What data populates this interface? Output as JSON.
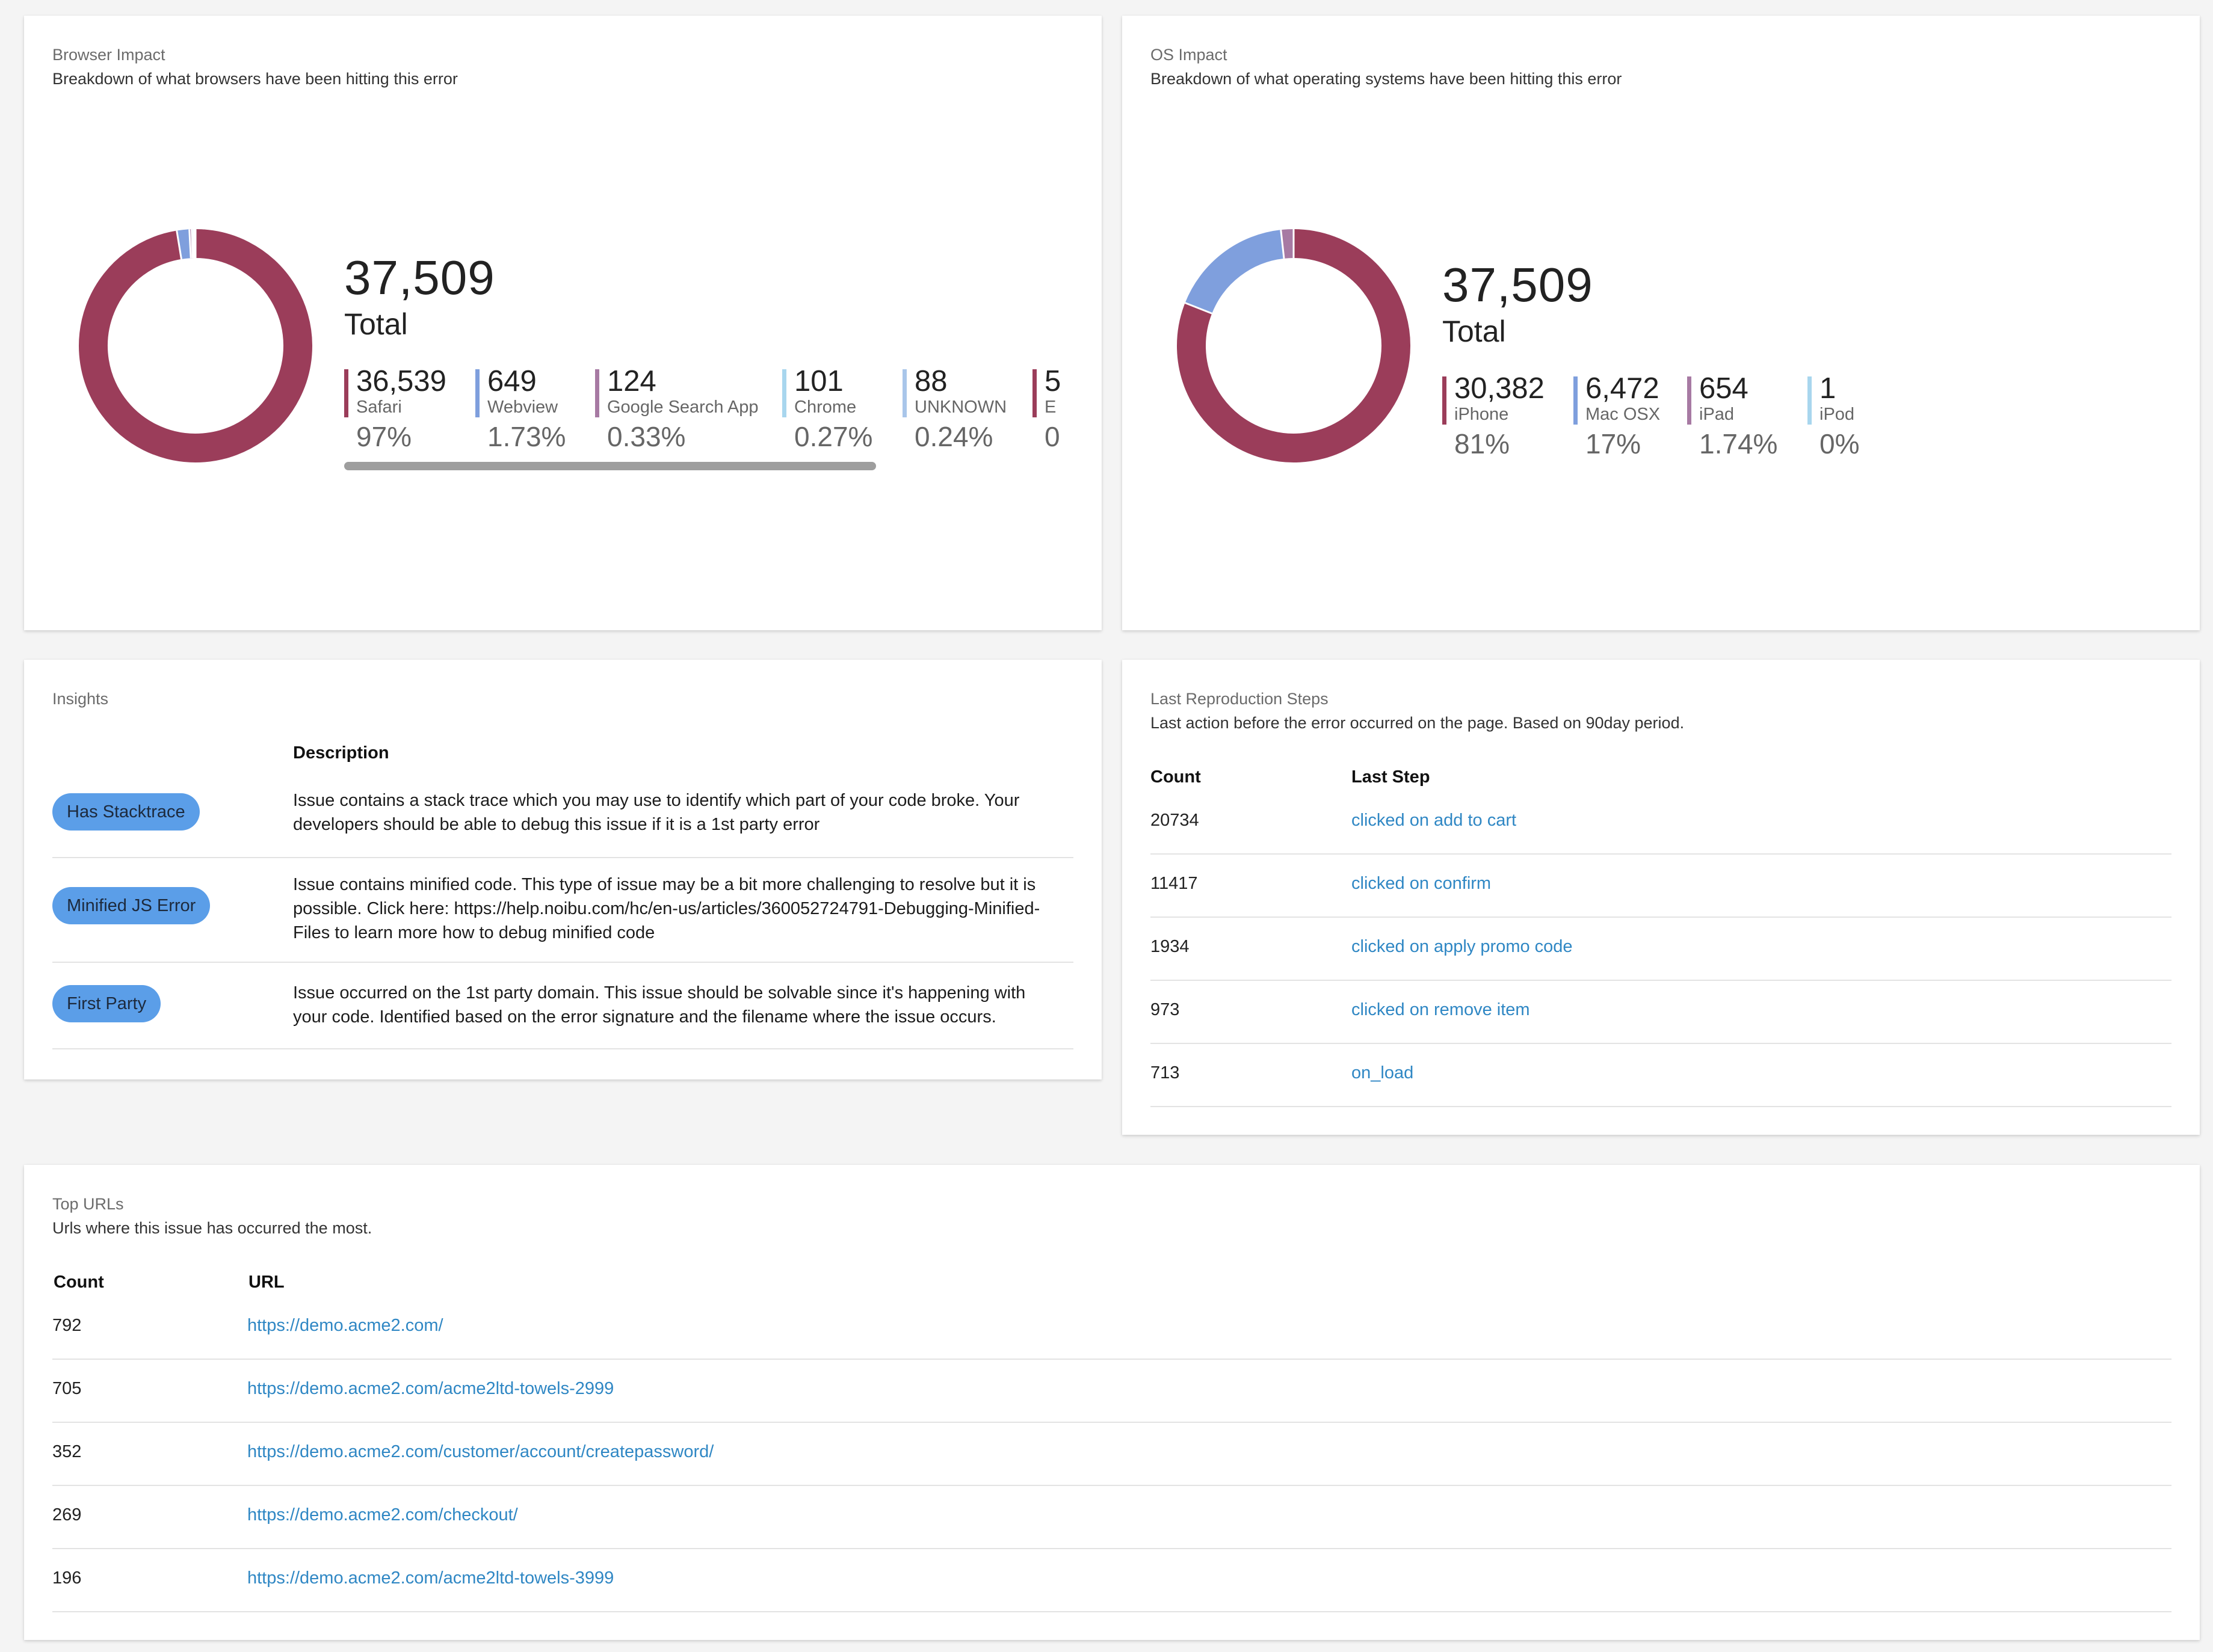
{
  "browser_impact": {
    "title": "Browser Impact",
    "subtitle": "Breakdown of what browsers have been hitting this error",
    "total": "37,509",
    "total_label": "Total",
    "items": [
      {
        "count": "36,539",
        "name": "Safari",
        "pct": "97%",
        "color": "#9b3d5a"
      },
      {
        "count": "649",
        "name": "Webview",
        "pct": "1.73%",
        "color": "#7f9fdd"
      },
      {
        "count": "124",
        "name": "Google Search App",
        "pct": "0.33%",
        "color": "#a77aa3"
      },
      {
        "count": "101",
        "name": "Chrome",
        "pct": "0.27%",
        "color": "#a8d6ee"
      },
      {
        "count": "88",
        "name": "UNKNOWN",
        "pct": "0.24%",
        "color": "#a9c6ea"
      },
      {
        "count": "5",
        "name": "E",
        "pct": "0",
        "color": "#9b3d5a"
      }
    ]
  },
  "os_impact": {
    "title": "OS Impact",
    "subtitle": "Breakdown of what operating systems have been hitting this error",
    "total": "37,509",
    "total_label": "Total",
    "items": [
      {
        "count": "30,382",
        "name": "iPhone",
        "pct": "81%",
        "color": "#9b3d5a"
      },
      {
        "count": "6,472",
        "name": "Mac OSX",
        "pct": "17%",
        "color": "#7f9fdd"
      },
      {
        "count": "654",
        "name": "iPad",
        "pct": "1.74%",
        "color": "#a77aa3"
      },
      {
        "count": "1",
        "name": "iPod",
        "pct": "0%",
        "color": "#a8d6ee"
      }
    ]
  },
  "insights": {
    "title": "Insights",
    "description_header": "Description",
    "rows": [
      {
        "tag": "Has Stacktrace",
        "description": "Issue contains a stack trace which you may use to identify which part of your code broke. Your developers should be able to debug this issue if it is a 1st party error"
      },
      {
        "tag": "Minified JS Error",
        "description": "Issue contains minified code. This type of issue may be a bit more challenging to resolve but it is possible. Click here: https://help.noibu.com/hc/en-us/articles/360052724791-Debugging-Minified-Files to learn more how to debug minified code"
      },
      {
        "tag": "First Party",
        "description": "Issue occurred on the 1st party domain. This issue should be solvable since it's happening with your code. Identified based on the error signature and the filename where the issue occurs."
      }
    ]
  },
  "repro": {
    "title": "Last Reproduction Steps",
    "subtitle": "Last action before the error occurred on the page. Based on 90day period.",
    "count_header": "Count",
    "step_header": "Last Step",
    "rows": [
      {
        "count": "20734",
        "step": "clicked on add to cart"
      },
      {
        "count": "11417",
        "step": "clicked on confirm"
      },
      {
        "count": "1934",
        "step": "clicked on apply promo code"
      },
      {
        "count": "973",
        "step": "clicked on remove item"
      },
      {
        "count": "713",
        "step": "on_load"
      }
    ]
  },
  "top_urls": {
    "title": "Top URLs",
    "subtitle": "Urls where this issue has occurred the most.",
    "count_header": "Count",
    "url_header": "URL",
    "rows": [
      {
        "count": "792",
        "url": "https://demo.acme2.com/"
      },
      {
        "count": "705",
        "url": "https://demo.acme2.com/acme2ltd-towels-2999"
      },
      {
        "count": "352",
        "url": "https://demo.acme2.com/customer/account/createpassword/"
      },
      {
        "count": "269",
        "url": "https://demo.acme2.com/checkout/"
      },
      {
        "count": "196",
        "url": "https://demo.acme2.com/acme2ltd-towels-3999"
      }
    ]
  }
}
